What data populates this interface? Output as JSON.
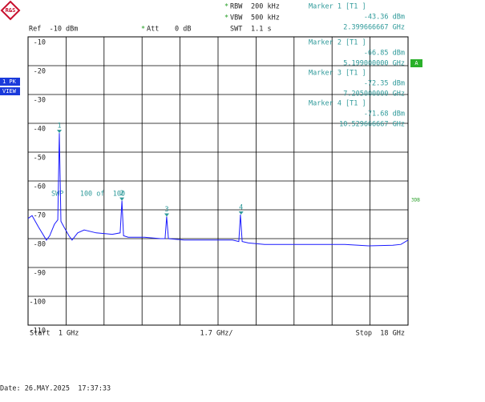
{
  "chart_data": {
    "type": "line",
    "color": "#1a1aff",
    "x": [
      1.0,
      1.18,
      1.47,
      1.82,
      1.97,
      2.18,
      2.33,
      2.4,
      2.47,
      2.61,
      2.83,
      2.97,
      3.22,
      3.51,
      4.05,
      4.77,
      5.12,
      5.2,
      5.27,
      5.48,
      6.2,
      6.92,
      7.13,
      7.2,
      7.28,
      7.99,
      8.71,
      9.43,
      10.15,
      10.43,
      10.5,
      10.58,
      10.86,
      11.58,
      12.66,
      14.09,
      15.17,
      16.24,
      17.32,
      17.68,
      18.0
    ],
    "values": [
      -73,
      -72,
      -76,
      -80.5,
      -79,
      -75,
      -73.5,
      -43.36,
      -74,
      -76,
      -79,
      -80.5,
      -78,
      -77,
      -78,
      -78.5,
      -78,
      -66.85,
      -79,
      -79.5,
      -79.5,
      -80,
      -80,
      -72.35,
      -80,
      -80.5,
      -80.5,
      -80.5,
      -80.5,
      -81,
      -71.68,
      -81,
      -81.5,
      -82,
      -82,
      -82,
      -82,
      -82.5,
      -82.3,
      -82,
      -80.5
    ],
    "xlim": [
      1,
      18
    ],
    "ylim": [
      -110,
      -10
    ],
    "yticks": [
      -10,
      -20,
      -30,
      -40,
      -50,
      -60,
      -70,
      -80,
      -90,
      -100,
      -110
    ],
    "grid": true,
    "ref": "Ref  -10 dBm",
    "settings": [
      {
        "flag": "*",
        "label": "RBW",
        "value": "200 kHz"
      },
      {
        "flag": "*",
        "label": "VBW",
        "value": "500 kHz"
      },
      {
        "label": "SWT",
        "value": "1.1 s"
      }
    ],
    "att": {
      "flag": "*",
      "label": "Att",
      "value": "0 dB"
    },
    "sweep": "SWP    100 of  100",
    "markers": [
      {
        "label": "1",
        "title": "Marker 1 [T1 ]",
        "x": 2.399666667,
        "value": -43.36,
        "value_label": "-43.36 dBm",
        "x_label": "2.399666667 GHz"
      },
      {
        "label": "2",
        "title": "Marker 2 [T1 ]",
        "x": 5.199,
        "value": -66.85,
        "value_label": "-66.85 dBm",
        "x_label": "5.199000000 GHz"
      },
      {
        "label": "3",
        "title": "Marker 3 [T1 ]",
        "x": 7.205,
        "value": -72.35,
        "value_label": "-72.35 dBm",
        "x_label": "7.205000000 GHz"
      },
      {
        "label": "4",
        "title": "Marker 4 [T1 ]",
        "x": 10.529666667,
        "value": -71.68,
        "value_label": "-71.68 dBm",
        "x_label": "10.529666667 GHz"
      }
    ],
    "start_label": "Start  1 GHz",
    "span_label": "1.7 GHz/",
    "stop_label": "Stop  18 GHz",
    "trace_mode": [
      "1 PK",
      "VIEW"
    ],
    "trace_flag": "A",
    "side_label": "3DB",
    "date": "Date: 26.MAY.2025  17:37:33"
  }
}
